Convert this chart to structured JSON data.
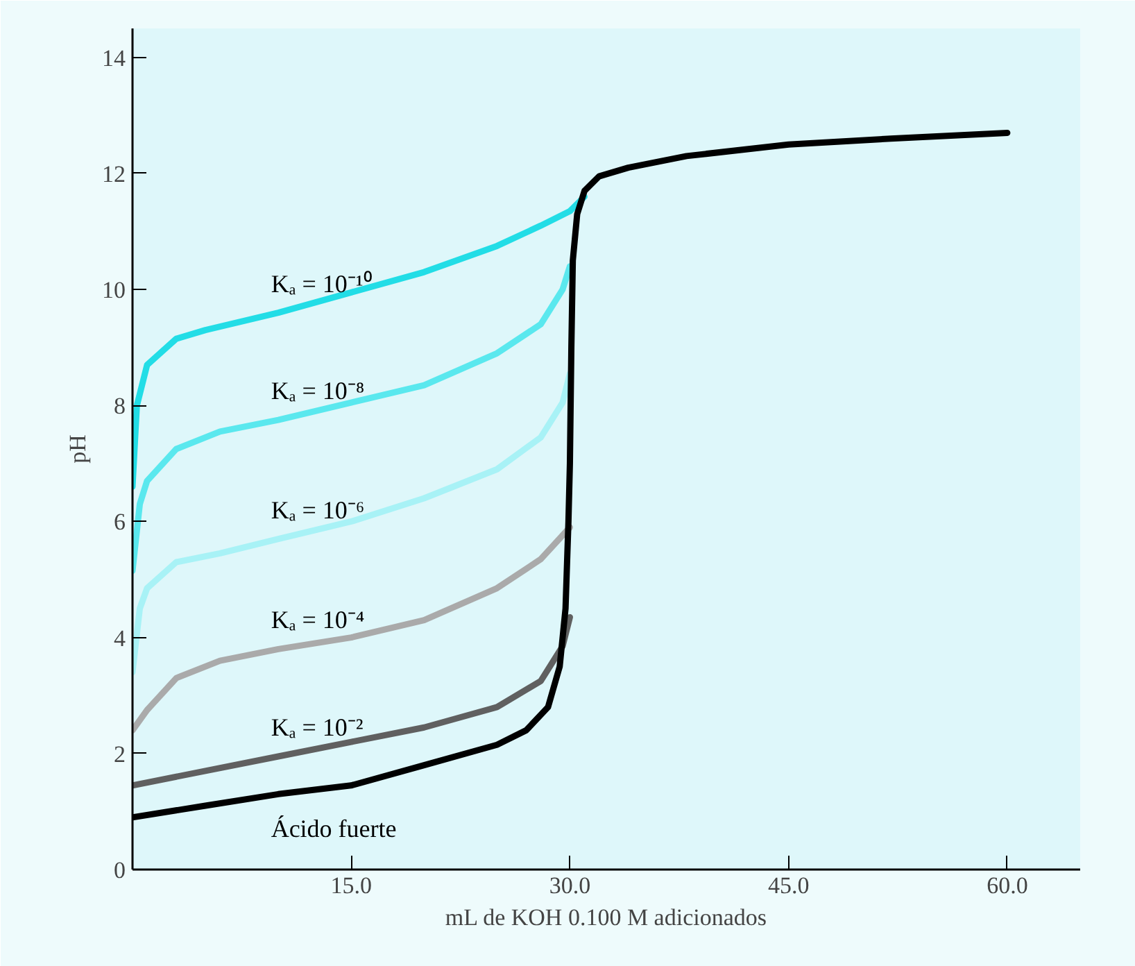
{
  "chart_data": {
    "type": "line",
    "xlabel": "mL de KOH 0.100 M adicionados",
    "ylabel": "pH",
    "xlim": [
      0,
      65
    ],
    "ylim": [
      0,
      14.5
    ],
    "xticks": [
      {
        "value": 15,
        "label": "15.0"
      },
      {
        "value": 30,
        "label": "30.0"
      },
      {
        "value": 45,
        "label": "45.0"
      },
      {
        "value": 60,
        "label": "60.0"
      }
    ],
    "yticks": [
      0,
      2,
      4,
      6,
      8,
      10,
      12,
      14
    ],
    "grid": false,
    "legend": false,
    "marker": "none",
    "line_style": "solid",
    "series": [
      {
        "name": "Kₐ = 10⁻¹⁰",
        "color": "#22dde6",
        "x": [
          0,
          0.3,
          1,
          3,
          5,
          10,
          15,
          20,
          25,
          28,
          30,
          31
        ],
        "values": [
          6.6,
          8.0,
          8.7,
          9.15,
          9.3,
          9.6,
          9.95,
          10.3,
          10.75,
          11.1,
          11.35,
          11.6
        ]
      },
      {
        "name": "Kₐ = 10⁻⁸",
        "color": "#5ae8ee",
        "x": [
          0,
          0.5,
          1,
          3,
          6,
          10,
          15,
          20,
          25,
          28,
          29.5,
          30
        ],
        "values": [
          5.15,
          6.3,
          6.7,
          7.25,
          7.55,
          7.75,
          8.05,
          8.35,
          8.9,
          9.4,
          10.0,
          10.4
        ]
      },
      {
        "name": "Kₐ = 10⁻⁶",
        "color": "#a8f2f6",
        "x": [
          0,
          0.5,
          1,
          3,
          6,
          10,
          15,
          20,
          25,
          28,
          29.5,
          30
        ],
        "values": [
          3.4,
          4.5,
          4.85,
          5.3,
          5.45,
          5.7,
          6.0,
          6.4,
          6.9,
          7.45,
          8.05,
          8.55
        ]
      },
      {
        "name": "Kₐ = 10⁻⁴",
        "color": "#aaaaaa",
        "x": [
          0,
          1,
          3,
          6,
          10,
          15,
          20,
          25,
          28,
          30
        ],
        "values": [
          2.4,
          2.75,
          3.3,
          3.6,
          3.8,
          4.0,
          4.3,
          4.85,
          5.35,
          5.9
        ]
      },
      {
        "name": "Kₐ = 10⁻²",
        "color": "#606060",
        "x": [
          0,
          5,
          10,
          15,
          20,
          25,
          28,
          29.5,
          30
        ],
        "values": [
          1.45,
          1.7,
          1.95,
          2.2,
          2.45,
          2.8,
          3.25,
          3.85,
          4.35
        ]
      },
      {
        "name": "Ácido fuerte",
        "color": "#000000",
        "x": [
          0,
          5,
          10,
          15,
          20,
          25,
          27,
          28.5,
          29.3,
          29.7,
          29.9,
          30,
          30.1,
          30.2,
          30.5,
          31,
          32,
          34,
          38,
          45,
          52,
          60
        ],
        "values": [
          0.9,
          1.1,
          1.3,
          1.45,
          1.8,
          2.15,
          2.4,
          2.8,
          3.5,
          4.5,
          6.0,
          7.0,
          9.0,
          10.5,
          11.3,
          11.7,
          11.95,
          12.1,
          12.3,
          12.5,
          12.6,
          12.7
        ]
      }
    ]
  }
}
